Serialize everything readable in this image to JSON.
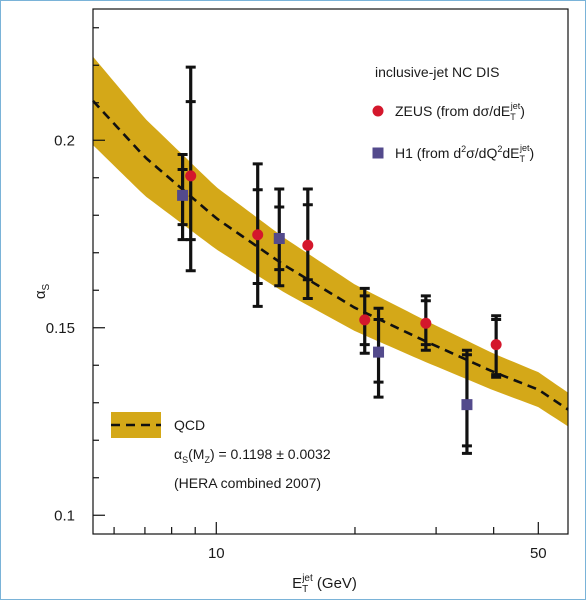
{
  "chart_data": {
    "type": "scatter",
    "title": "",
    "xlabel": {
      "base": "E",
      "sub": "T",
      "sup": "jet",
      "unit": " (GeV)"
    },
    "ylabel": {
      "base": "α",
      "sub": "S"
    },
    "x_scale": "log",
    "xlim": [
      5.4,
      58
    ],
    "ylim": [
      0.095,
      0.235
    ],
    "x_tick_labels": [
      {
        "value": 10,
        "label": "10"
      },
      {
        "value": 50,
        "label": "50"
      }
    ],
    "y_tick_labels": [
      {
        "value": 0.1,
        "label": "0.1"
      },
      {
        "value": 0.15,
        "label": "0.15"
      },
      {
        "value": 0.2,
        "label": "0.2"
      }
    ],
    "legend": {
      "header": "inclusive-jet NC DIS",
      "zeus": {
        "prefix": "ZEUS (from d",
        "sym": "σ",
        "mid": "/dE",
        "sub": "T",
        "sup": "jet",
        "suffix": ")"
      },
      "h1": {
        "prefix": "H1 (from d",
        "sup2a": "2",
        "sym": "σ",
        "mid": "/dQ",
        "sup2b": "2",
        "mid2": "dE",
        "sub": "T",
        "sup": "jet",
        "suffix": ")"
      },
      "qcd_label": "QCD",
      "alpha_prefix": "α",
      "alpha_sub": "S",
      "alpha_mid": "(M",
      "alpha_mid_sub": "Z",
      "alpha_value": ") = 0.1198 ± 0.0032",
      "hera_note": "(HERA combined 2007)"
    },
    "series": [
      {
        "name": "ZEUS",
        "color": "#d4172c",
        "marker": "circle",
        "points": [
          {
            "x": 8.8,
            "y": 0.1905,
            "stat": [
              0.1735,
              0.2103
            ],
            "tot": [
              0.1652,
              0.2195
            ]
          },
          {
            "x": 12.3,
            "y": 0.1748,
            "stat": [
              0.1618,
              0.1868
            ],
            "tot": [
              0.1557,
              0.1937
            ]
          },
          {
            "x": 15.8,
            "y": 0.172,
            "stat": [
              0.1628,
              0.1828
            ],
            "tot": [
              0.1578,
              0.187
            ]
          },
          {
            "x": 21.0,
            "y": 0.1521,
            "stat": [
              0.1455,
              0.1585
            ],
            "tot": [
              0.1432,
              0.1605
            ]
          },
          {
            "x": 28.5,
            "y": 0.1512,
            "stat": [
              0.1455,
              0.1572
            ],
            "tot": [
              0.144,
              0.1585
            ]
          },
          {
            "x": 40.5,
            "y": 0.1455,
            "stat": [
              0.1375,
              0.1522
            ],
            "tot": [
              0.1368,
              0.1532
            ]
          }
        ]
      },
      {
        "name": "H1",
        "color": "#534a8c",
        "marker": "square",
        "points": [
          {
            "x": 8.45,
            "y": 0.1853,
            "stat": [
              0.1775,
              0.1922
            ],
            "tot": [
              0.1735,
              0.1962
            ]
          },
          {
            "x": 13.7,
            "y": 0.1738,
            "stat": [
              0.1655,
              0.1822
            ],
            "tot": [
              0.1612,
              0.187
            ]
          },
          {
            "x": 22.5,
            "y": 0.1435,
            "stat": [
              0.1355,
              0.1522
            ],
            "tot": [
              0.1315,
              0.1552
            ]
          },
          {
            "x": 35.0,
            "y": 0.1295,
            "stat": [
              0.1185,
              0.1428
            ],
            "tot": [
              0.1165,
              0.144
            ]
          }
        ]
      }
    ],
    "qcd_curve": {
      "name": "QCD",
      "line_color": "#111111",
      "band_color": "#d4a818",
      "center": [
        [
          5.4,
          0.2105
        ],
        [
          7,
          0.1955
        ],
        [
          10,
          0.1792
        ],
        [
          14,
          0.1668
        ],
        [
          20,
          0.1553
        ],
        [
          28,
          0.1468
        ],
        [
          40,
          0.1382
        ],
        [
          50,
          0.1335
        ],
        [
          58,
          0.1282
        ]
      ],
      "halfwidth": [
        [
          5.4,
          0.0118
        ],
        [
          10,
          0.0083
        ],
        [
          20,
          0.0062
        ],
        [
          40,
          0.0049
        ],
        [
          58,
          0.0045
        ]
      ]
    }
  }
}
